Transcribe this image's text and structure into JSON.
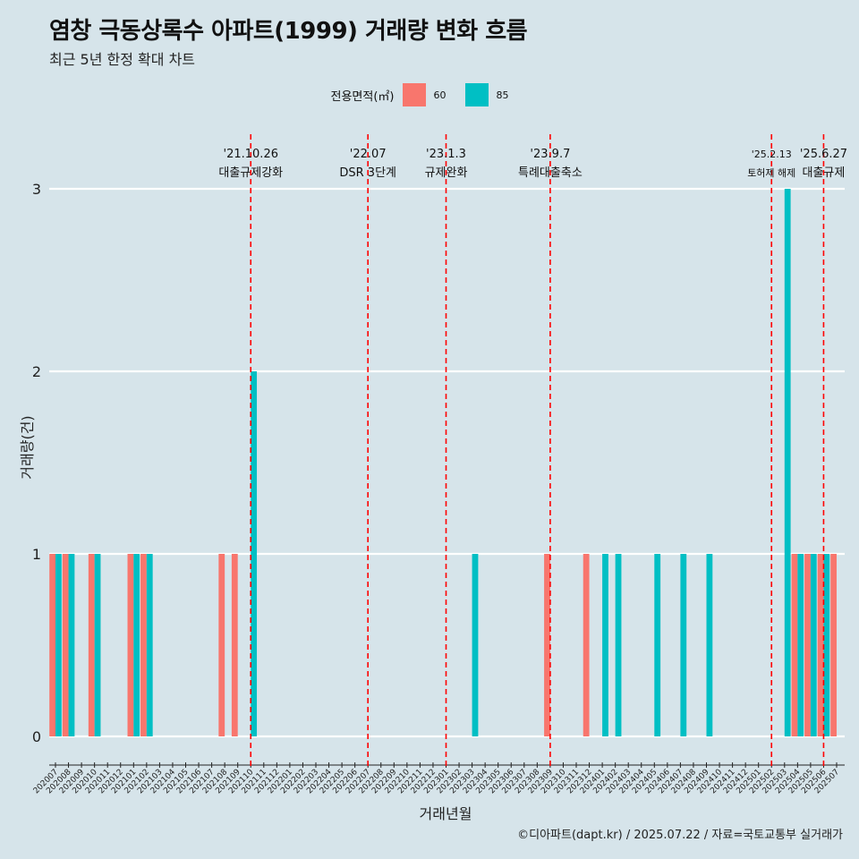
{
  "title": "염창 극동상록수 아파트(1999) 거래량 변화 흐름",
  "subtitle": "최근 5년 한정 확대 차트",
  "legend": {
    "title": "전용면적(㎡)",
    "items": [
      {
        "label": "60",
        "color": "#f8766d"
      },
      {
        "label": "85",
        "color": "#00bfc4"
      }
    ]
  },
  "caption": "©디아파트(dapt.kr) / 2025.07.22 / 자료=국토교통부 실거래가",
  "chart_data": {
    "type": "bar",
    "xlabel": "거래년월",
    "ylabel": "거래량(건)",
    "ylim": [
      0,
      3
    ],
    "yticks": [
      "0",
      "1",
      "2",
      "3"
    ],
    "categories": [
      "202007",
      "202008",
      "202009",
      "202010",
      "202011",
      "202012",
      "202101",
      "202102",
      "202103",
      "202104",
      "202105",
      "202106",
      "202107",
      "202108",
      "202109",
      "202110",
      "202111",
      "202112",
      "202201",
      "202202",
      "202203",
      "202204",
      "202205",
      "202206",
      "202207",
      "202208",
      "202209",
      "202210",
      "202211",
      "202212",
      "202301",
      "202302",
      "202303",
      "202304",
      "202305",
      "202306",
      "202307",
      "202308",
      "202309",
      "202310",
      "202311",
      "202312",
      "202401",
      "202402",
      "202403",
      "202404",
      "202405",
      "202406",
      "202407",
      "202408",
      "202409",
      "202410",
      "202411",
      "202412",
      "202501",
      "202502",
      "202503",
      "202504",
      "202505",
      "202506",
      "202507"
    ],
    "series": [
      {
        "name": "60",
        "color": "#f8766d",
        "values": [
          1,
          1,
          0,
          1,
          0,
          0,
          1,
          1,
          0,
          0,
          0,
          0,
          0,
          1,
          1,
          0,
          0,
          0,
          0,
          0,
          0,
          0,
          0,
          0,
          0,
          0,
          0,
          0,
          0,
          0,
          0,
          0,
          0,
          0,
          0,
          0,
          0,
          0,
          1,
          0,
          0,
          1,
          0,
          0,
          0,
          0,
          0,
          0,
          0,
          0,
          0,
          0,
          0,
          0,
          0,
          0,
          0,
          1,
          1,
          1,
          1
        ]
      },
      {
        "name": "85",
        "color": "#00bfc4",
        "values": [
          1,
          1,
          0,
          1,
          0,
          0,
          1,
          1,
          0,
          0,
          0,
          0,
          0,
          0,
          0,
          2,
          0,
          0,
          0,
          0,
          0,
          0,
          0,
          0,
          0,
          0,
          0,
          0,
          0,
          0,
          0,
          0,
          1,
          0,
          0,
          0,
          0,
          0,
          0,
          0,
          0,
          0,
          1,
          1,
          0,
          0,
          1,
          0,
          1,
          0,
          1,
          0,
          0,
          0,
          0,
          0,
          3,
          1,
          1,
          1,
          0
        ]
      }
    ],
    "events": [
      {
        "date": "'21.10.26",
        "label": "대출규제강화",
        "month": "202110"
      },
      {
        "date": "'22.07",
        "label": "DSR 3단계",
        "month": "202207"
      },
      {
        "date": "'23.1.3",
        "label": "규제완화",
        "month": "202301"
      },
      {
        "date": "'23.9.7",
        "label": "특례대출축소",
        "month": "202309"
      },
      {
        "date": "'25.2.13",
        "label": "토허제 해제",
        "month": "202502"
      },
      {
        "date": "'25.6.27",
        "label": "대출규제",
        "month": "202506"
      }
    ]
  }
}
